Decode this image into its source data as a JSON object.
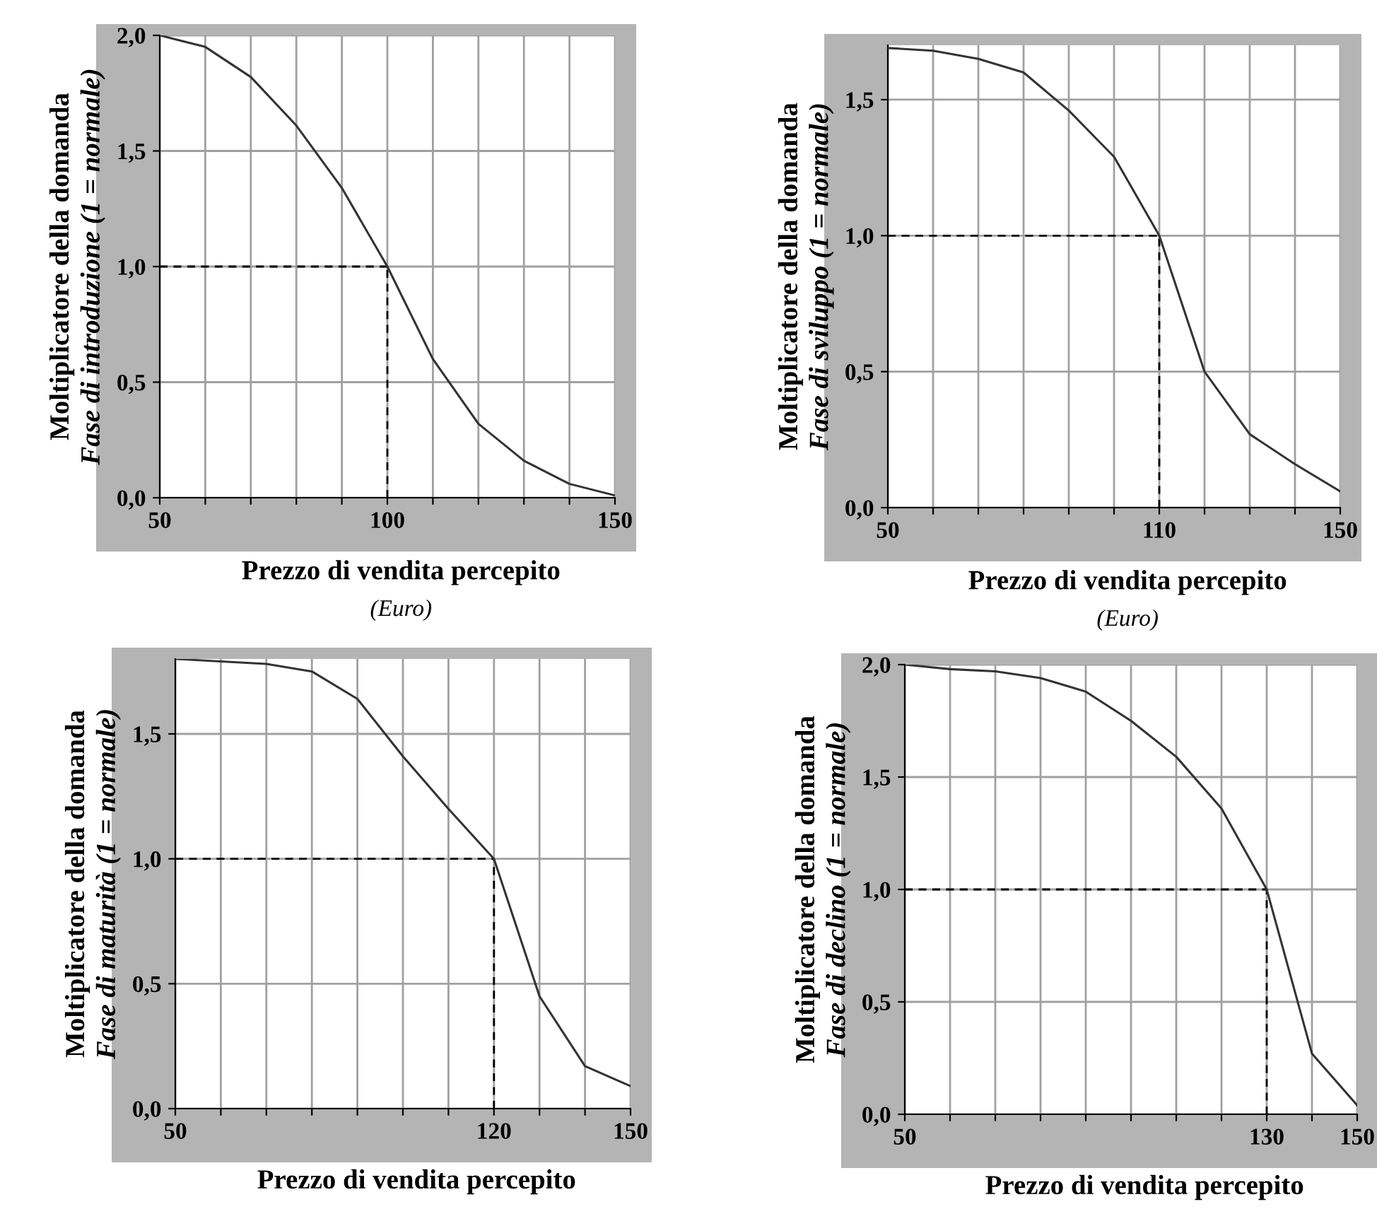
{
  "chart_data": [
    {
      "type": "line",
      "xlabel": "Prezzo di vendita percepito",
      "ylabel": "Moltiplicatore della domanda\nFase di introduzione (1 = normale)",
      "annotations": [
        "(Euro)"
      ],
      "x": [
        50,
        60,
        70,
        80,
        90,
        100,
        110,
        120,
        130,
        140,
        150
      ],
      "series": [
        {
          "color": "#333333",
          "values": [
            2.0,
            1.95,
            1.82,
            1.61,
            1.34,
            1.0,
            0.6,
            0.32,
            0.16,
            0.06,
            0.01
          ]
        }
      ],
      "xlim": [
        50,
        150
      ],
      "ylim": [
        0,
        2.0
      ],
      "xticks": [
        50,
        {
          "value": 60,
          "label": null
        },
        {
          "value": 70,
          "label": null
        },
        {
          "value": 80,
          "label": null
        },
        {
          "value": 90,
          "label": null
        },
        100,
        {
          "value": 110,
          "label": null
        },
        {
          "value": 120,
          "label": null
        },
        {
          "value": 130,
          "label": null
        },
        {
          "value": 140,
          "label": null
        },
        150
      ],
      "yticks": [
        {
          "value": 0,
          "label": "0,0"
        },
        {
          "value": 0.5,
          "label": "0,5"
        },
        {
          "value": 1.0,
          "label": "1,0"
        },
        {
          "value": 1.5,
          "label": "1,5"
        },
        {
          "value": 2.0,
          "label": "2,0"
        }
      ],
      "ref_lines": [
        {
          "axis": "x",
          "value": 100,
          "color": "#000000",
          "line_style": "dashed"
        },
        {
          "axis": "y",
          "value": 1.0,
          "color": "#000000",
          "line_style": "dashed"
        }
      ],
      "grid": true,
      "marker": "none",
      "line_style": "solid"
    },
    {
      "type": "line",
      "xlabel": "Prezzo di vendita percepito",
      "ylabel": "Moltiplicatore della domanda\nFase di sviluppo (1 = normale)",
      "annotations": [
        "(Euro)"
      ],
      "x": [
        50,
        60,
        70,
        80,
        90,
        100,
        110,
        120,
        130,
        140,
        150
      ],
      "series": [
        {
          "color": "#333333",
          "values": [
            1.69,
            1.68,
            1.65,
            1.6,
            1.46,
            1.29,
            1.0,
            0.5,
            0.27,
            0.16,
            0.06
          ]
        }
      ],
      "xlim": [
        50,
        150
      ],
      "ylim": [
        0,
        1.7
      ],
      "xticks": [
        50,
        {
          "value": 60,
          "label": null
        },
        {
          "value": 70,
          "label": null
        },
        {
          "value": 80,
          "label": null
        },
        {
          "value": 90,
          "label": null
        },
        {
          "value": 100,
          "label": null
        },
        110,
        {
          "value": 120,
          "label": null
        },
        {
          "value": 130,
          "label": null
        },
        {
          "value": 140,
          "label": null
        },
        150
      ],
      "yticks": [
        {
          "value": 0,
          "label": "0,0"
        },
        {
          "value": 0.5,
          "label": "0,5"
        },
        {
          "value": 1.0,
          "label": "1,0"
        },
        {
          "value": 1.5,
          "label": "1,5"
        }
      ],
      "ref_lines": [
        {
          "axis": "x",
          "value": 110,
          "color": "#000000",
          "line_style": "dashed"
        },
        {
          "axis": "y",
          "value": 1.0,
          "color": "#000000",
          "line_style": "dashed"
        }
      ],
      "grid": true,
      "marker": "none",
      "line_style": "solid"
    },
    {
      "type": "line",
      "xlabel": "Prezzo di vendita percepito",
      "ylabel": "Moltiplicatore della domanda\nFase di maturità (1 = normale)",
      "x": [
        50,
        60,
        70,
        80,
        90,
        100,
        110,
        120,
        130,
        140,
        150
      ],
      "series": [
        {
          "color": "#333333",
          "values": [
            1.8,
            1.79,
            1.78,
            1.75,
            1.64,
            1.41,
            1.2,
            1.0,
            0.45,
            0.17,
            0.09
          ]
        }
      ],
      "xlim": [
        50,
        150
      ],
      "ylim": [
        0,
        1.8
      ],
      "xticks": [
        50,
        {
          "value": 60,
          "label": null
        },
        {
          "value": 70,
          "label": null
        },
        {
          "value": 80,
          "label": null
        },
        {
          "value": 90,
          "label": null
        },
        {
          "value": 100,
          "label": null
        },
        {
          "value": 110,
          "label": null
        },
        120,
        {
          "value": 130,
          "label": null
        },
        {
          "value": 140,
          "label": null
        },
        150
      ],
      "yticks": [
        {
          "value": 0,
          "label": "0,0"
        },
        {
          "value": 0.5,
          "label": "0,5"
        },
        {
          "value": 1.0,
          "label": "1,0"
        },
        {
          "value": 1.5,
          "label": "1,5"
        }
      ],
      "ref_lines": [
        {
          "axis": "x",
          "value": 120,
          "color": "#000000",
          "line_style": "dashed"
        },
        {
          "axis": "y",
          "value": 1.0,
          "color": "#000000",
          "line_style": "dashed"
        }
      ],
      "grid": true,
      "marker": "none",
      "line_style": "solid"
    },
    {
      "type": "line",
      "xlabel": "Prezzo di vendita percepito",
      "ylabel": "Moltiplicatore della domanda\nFase di declino (1 = normale)",
      "x": [
        50,
        60,
        70,
        80,
        90,
        100,
        110,
        120,
        130,
        140,
        150
      ],
      "series": [
        {
          "color": "#333333",
          "values": [
            2.0,
            1.98,
            1.97,
            1.94,
            1.88,
            1.75,
            1.59,
            1.36,
            1.0,
            0.27,
            0.04
          ]
        }
      ],
      "xlim": [
        50,
        150
      ],
      "ylim": [
        0,
        2.0
      ],
      "xticks": [
        50,
        {
          "value": 60,
          "label": null
        },
        {
          "value": 70,
          "label": null
        },
        {
          "value": 80,
          "label": null
        },
        {
          "value": 90,
          "label": null
        },
        {
          "value": 100,
          "label": null
        },
        {
          "value": 110,
          "label": null
        },
        {
          "value": 120,
          "label": null
        },
        130,
        {
          "value": 140,
          "label": null
        },
        150
      ],
      "yticks": [
        {
          "value": 0,
          "label": "0,0"
        },
        {
          "value": 0.5,
          "label": "0,5"
        },
        {
          "value": 1.0,
          "label": "1,0"
        },
        {
          "value": 1.5,
          "label": "1,5"
        },
        {
          "value": 2.0,
          "label": "2,0"
        }
      ],
      "ref_lines": [
        {
          "axis": "x",
          "value": 130,
          "color": "#000000",
          "line_style": "dashed"
        },
        {
          "axis": "y",
          "value": 1.0,
          "color": "#000000",
          "line_style": "dashed"
        }
      ],
      "grid": true,
      "marker": "none",
      "line_style": "solid"
    }
  ]
}
